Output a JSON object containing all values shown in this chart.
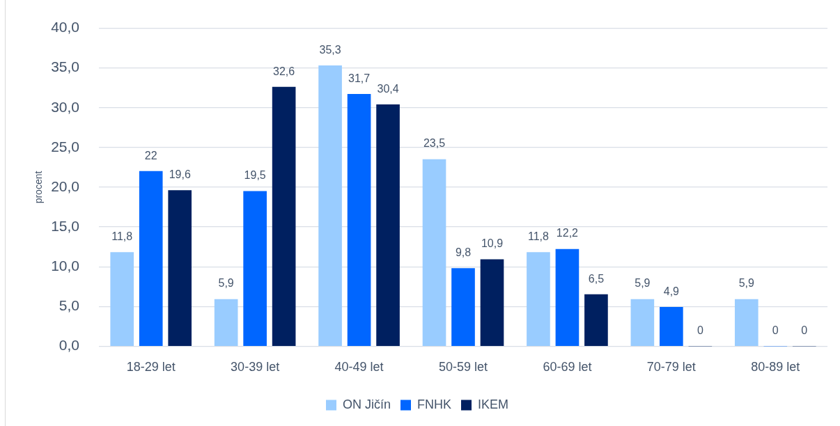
{
  "chart_data": {
    "type": "bar",
    "ylabel": "procent",
    "categories": [
      "18-29 let",
      "30-39 let",
      "40-49 let",
      "50-59 let",
      "60-69 let",
      "70-79 let",
      "80-89 let"
    ],
    "series": [
      {
        "name": "ON Jičín",
        "color": "#99ccff",
        "values": [
          11.8,
          5.9,
          35.3,
          23.5,
          11.8,
          5.9,
          5.9
        ],
        "value_labels": [
          "11,8",
          "5,9",
          "35,3",
          "23,5",
          "11,8",
          "5,9",
          "5,9"
        ]
      },
      {
        "name": "FNHK",
        "color": "#0066ff",
        "values": [
          22,
          19.5,
          31.7,
          9.8,
          12.2,
          4.9,
          0
        ],
        "value_labels": [
          "22",
          "19,5",
          "31,7",
          "9,8",
          "12,2",
          "4,9",
          "0"
        ]
      },
      {
        "name": "IKEM",
        "color": "#002060",
        "values": [
          19.6,
          32.6,
          30.4,
          10.9,
          6.5,
          0,
          0
        ],
        "value_labels": [
          "19,6",
          "32,6",
          "30,4",
          "10,9",
          "6,5",
          "0",
          "0"
        ]
      }
    ],
    "ylim": [
      0,
      40
    ],
    "yticks": [
      {
        "value": 0,
        "label": "0,0"
      },
      {
        "value": 5,
        "label": "5,0"
      },
      {
        "value": 10,
        "label": "10,0"
      },
      {
        "value": 15,
        "label": "15,0"
      },
      {
        "value": 20,
        "label": "20,0"
      },
      {
        "value": 25,
        "label": "25,0"
      },
      {
        "value": 30,
        "label": "30,0"
      },
      {
        "value": 35,
        "label": "35,0"
      },
      {
        "value": 40,
        "label": "40,0"
      }
    ],
    "grid": "y",
    "legend": "bottom"
  }
}
